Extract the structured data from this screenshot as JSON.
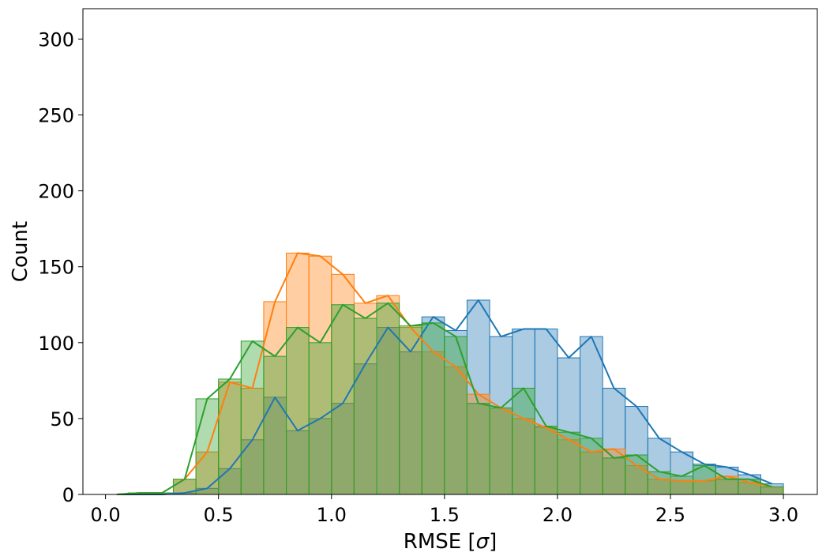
{
  "chart_data": {
    "type": "bar",
    "title": "",
    "xlabel_text": "RMSE [",
    "xlabel_symbol": "σ",
    "xlabel_close": "]",
    "ylabel": "Count",
    "xlim": [
      -0.1,
      3.15
    ],
    "ylim": [
      0,
      320
    ],
    "xticks": [
      0.0,
      0.5,
      1.0,
      1.5,
      2.0,
      2.5,
      3.0
    ],
    "xtick_labels": [
      "0.0",
      "0.5",
      "1.0",
      "1.5",
      "2.0",
      "2.5",
      "3.0"
    ],
    "yticks": [
      0,
      50,
      100,
      150,
      200,
      250,
      300
    ],
    "ytick_labels": [
      "0",
      "50",
      "100",
      "150",
      "200",
      "250",
      "300"
    ],
    "grid": false,
    "legend": "none",
    "bin_centers": [
      0.05,
      0.15,
      0.25,
      0.35,
      0.45,
      0.55,
      0.65,
      0.75,
      0.85,
      0.95,
      1.05,
      1.15,
      1.25,
      1.35,
      1.45,
      1.55,
      1.65,
      1.75,
      1.85,
      1.95,
      2.05,
      2.15,
      2.25,
      2.35,
      2.45,
      2.55,
      2.65,
      2.75,
      2.85,
      2.95
    ],
    "bin_width": 0.1,
    "series": [
      {
        "color": "#1f77b4",
        "values": [
          0,
          0,
          0,
          1,
          4,
          17,
          36,
          64,
          42,
          50,
          60,
          86,
          110,
          94,
          117,
          108,
          128,
          104,
          109,
          109,
          90,
          104,
          70,
          58,
          37,
          28,
          20,
          18,
          13,
          7
        ]
      },
      {
        "color": "#ff7f0e",
        "values": [
          0,
          1,
          1,
          10,
          28,
          74,
          70,
          127,
          159,
          157,
          145,
          126,
          131,
          110,
          94,
          84,
          66,
          57,
          50,
          44,
          36,
          28,
          30,
          19,
          10,
          9,
          9,
          12,
          8,
          5
        ]
      },
      {
        "color": "#2ca02c",
        "values": [
          0,
          1,
          1,
          10,
          63,
          76,
          101,
          91,
          110,
          100,
          125,
          116,
          126,
          111,
          113,
          104,
          60,
          57,
          70,
          45,
          41,
          37,
          24,
          26,
          15,
          12,
          19,
          10,
          10,
          5
        ]
      }
    ]
  }
}
